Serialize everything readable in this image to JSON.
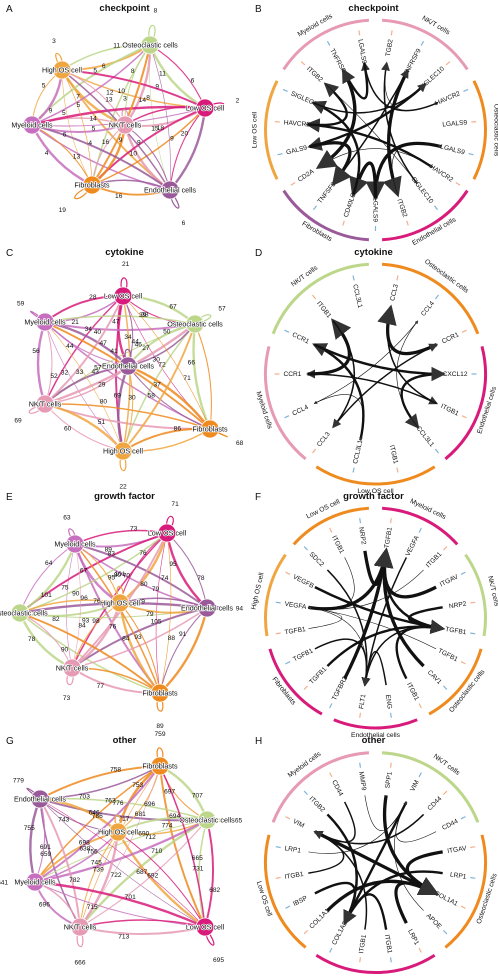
{
  "colors": {
    "High OS cell": "#f0a640",
    "Osteoclastic cells": "#bcd68a",
    "Low OS cell": "#d81b7a",
    "Endothelial cells": "#9a5a9a",
    "Fibroblasts": "#ef8a1e",
    "NK/T cells": "#e69ab4",
    "Myeloid cells": "#c76fbe",
    "receptor_tick": "#7fb3d8",
    "ligand_tick": "#f2b08a"
  },
  "network_panels": [
    {
      "letter": "A",
      "title": "checkpoint",
      "nodes": [
        {
          "id": "High OS cell",
          "label": "High OS cell",
          "self": "3"
        },
        {
          "id": "Osteoclastic cells",
          "label": "Osteoclastic cells",
          "self": "8"
        },
        {
          "id": "Myeloid cells",
          "label": "Myeloid cells",
          "self": "9"
        },
        {
          "id": "NK/T cells",
          "label": "NK/T cells",
          "self": "3"
        },
        {
          "id": "Low OS cell",
          "label": "Low OS cell",
          "self": "2"
        },
        {
          "id": "Fibroblasts",
          "label": "Fibroblasts",
          "self": "19"
        },
        {
          "id": "Endothelial cells",
          "label": "Endothelial cells",
          "self": "6"
        }
      ],
      "edge_numbers": [
        "5",
        "5",
        "7",
        "12",
        "5",
        "14",
        "6",
        "8",
        "11",
        "10",
        "8",
        "6",
        "5",
        "4",
        "13",
        "15",
        "16",
        "10",
        "18",
        "20",
        "16",
        "11",
        "9",
        "13",
        "9",
        "4",
        "9",
        "5",
        "14",
        "6",
        "9",
        "9"
      ]
    },
    {
      "letter": "C",
      "title": "cytokine",
      "nodes": [
        {
          "id": "Low OS cell",
          "label": "Low OS cell",
          "self": "21"
        },
        {
          "id": "Myeloid cells",
          "label": "Myeloid cells",
          "self": "59"
        },
        {
          "id": "Osteoclastic cells",
          "label": "Osteoclastic cells",
          "self": "57"
        },
        {
          "id": "Endothelial cells",
          "label": "Endothelial cells",
          "self": "34"
        },
        {
          "id": "NK/T cells",
          "label": "NK/T cells",
          "self": "69"
        },
        {
          "id": "Fibroblasts",
          "label": "Fibroblasts",
          "self": "68"
        },
        {
          "id": "High OS cell",
          "label": "High OS cell",
          "self": "22"
        }
      ],
      "edge_numbers": [
        "28",
        "38",
        "47",
        "34",
        "27",
        "41",
        "40",
        "44",
        "56",
        "57",
        "32",
        "50",
        "46",
        "66",
        "72",
        "43",
        "58",
        "69",
        "51",
        "60",
        "86",
        "21",
        "67",
        "44",
        "33",
        "71",
        "30",
        "39",
        "47",
        "52",
        "37",
        "80",
        "30",
        "29"
      ]
    },
    {
      "letter": "E",
      "title": "growth factor",
      "nodes": [
        {
          "id": "Myeloid cells",
          "label": "Myeloid cells",
          "self": "63"
        },
        {
          "id": "Low OS cell",
          "label": "Low OS cell",
          "self": "71"
        },
        {
          "id": "Osteoclastic cells",
          "label": "Osteoclastic cells",
          "self": "95"
        },
        {
          "id": "High OS cell",
          "label": "High OS cell",
          "self": "101"
        },
        {
          "id": "Endothelial cells",
          "label": "Endothelial cells",
          "self": "94"
        },
        {
          "id": "NK/T cells",
          "label": "NK/T cells",
          "self": "73"
        },
        {
          "id": "Fibroblasts",
          "label": "Fibroblasts",
          "self": "89"
        }
      ],
      "edge_numbers": [
        "89",
        "64",
        "67",
        "80",
        "75",
        "76",
        "83",
        "76",
        "95",
        "70",
        "79",
        "82",
        "93",
        "78",
        "90",
        "79",
        "98",
        "84",
        "105",
        "91",
        "77",
        "73",
        "101",
        "95",
        "74",
        "84",
        "93",
        "90",
        "80",
        "78",
        "76",
        "88",
        "96",
        "79"
      ]
    },
    {
      "letter": "G",
      "title": "other",
      "nodes": [
        {
          "id": "Fibroblasts",
          "label": "Fibroblasts",
          "self": "759"
        },
        {
          "id": "Endothelial cells",
          "label": "Endothelial cells",
          "self": "779"
        },
        {
          "id": "Osteoclastic cells",
          "label": "Osteoclastic cells",
          "self": "765"
        },
        {
          "id": "High OS cell",
          "label": "High OS cell",
          "self": "776"
        },
        {
          "id": "Myeloid cells",
          "label": "Myeloid cells",
          "self": "641"
        },
        {
          "id": "NK/T cells",
          "label": "NK/T cells",
          "self": "666"
        },
        {
          "id": "Low OS cell",
          "label": "Low OS cell",
          "self": "695"
        }
      ],
      "edge_numbers": [
        "758",
        "697",
        "753",
        "762",
        "717",
        "774",
        "786",
        "743",
        "755",
        "691",
        "756",
        "694",
        "690",
        "710",
        "665",
        "698",
        "745",
        "687",
        "696",
        "715",
        "713",
        "703",
        "707",
        "681",
        "638",
        "722",
        "731",
        "696",
        "646",
        "659",
        "782",
        "692",
        "712",
        "739",
        "701",
        "682"
      ]
    }
  ],
  "chord_panels": [
    {
      "letter": "B",
      "title": "checkpoint",
      "cells": [
        {
          "label": "NK/T cells",
          "color_key": "NK/T cells"
        },
        {
          "label": "Osteoclastic cells",
          "color_key": "Fibroblasts"
        },
        {
          "label": "Endothelial cells",
          "color_key": "Low OS cell"
        },
        {
          "label": "Fibroblasts",
          "color_key": "Endothelial cells"
        },
        {
          "label": "Low OS cell",
          "color_key": "High OS cell"
        },
        {
          "label": "Myeloid cells",
          "color_key": "NK/T cells"
        }
      ],
      "genes": [
        "TGB2",
        "TNFRSF9",
        "SIGLEC10",
        "HAVCR2",
        "LGALS9",
        "LGALS9",
        "HAVCR2",
        "SIGLEC10",
        "ITGB2",
        "LGALS9",
        "CD40LG",
        "TNFSF9",
        "CD2A",
        "GALS9",
        "HAVCR2",
        "SIGLEC10",
        "ITGB2",
        "TNFRSF9",
        "LGALS9"
      ]
    },
    {
      "letter": "D",
      "title": "cytokine",
      "cells": [
        {
          "label": "Osteoclastic cells",
          "color_key": "Fibroblasts"
        },
        {
          "label": "Endothelial cells",
          "color_key": "Low OS cell"
        },
        {
          "label": "Low OS cell",
          "color_key": "Fibroblasts"
        },
        {
          "label": "Myeloid cells",
          "color_key": "NK/T cells"
        },
        {
          "label": "NK/T cells",
          "color_key": "Osteoclastic cells"
        }
      ],
      "genes": [
        "CCL3",
        "CCL4",
        "CCR1",
        "CXCL12",
        "ITGB1",
        "CCL3L1",
        "ITGB1",
        "CCL3L1",
        "CCL3",
        "CCL4",
        "CCR1",
        "CCR1",
        "ITGB1",
        "CCL3L1"
      ]
    },
    {
      "letter": "F",
      "title": "growth factor",
      "cells": [
        {
          "label": "Myeloid cells",
          "color_key": "Low OS cell"
        },
        {
          "label": "NK/T cells",
          "color_key": "Osteoclastic cells"
        },
        {
          "label": "Osteoclastic cells",
          "color_key": "Fibroblasts"
        },
        {
          "label": "Endothelial cells",
          "color_key": "Low OS cell"
        },
        {
          "label": "Fibroblasts",
          "color_key": "Low OS cell"
        },
        {
          "label": "High OS cell",
          "color_key": "High OS cell"
        },
        {
          "label": "Low OS cell",
          "color_key": "Fibroblasts"
        }
      ],
      "genes": [
        "TGFB1",
        "VEGFA",
        "ITGB1",
        "ITGAV",
        "NRP2",
        "TGFB1",
        "TGFB1",
        "CAV1",
        "ITGB1",
        "ENG",
        "FLT1",
        "TGFBR2",
        "TGFB1",
        "TGFB1",
        "TGFB1",
        "VEGFA",
        "VEGFB",
        "SDC2",
        "ITGB1",
        "NRP2"
      ]
    },
    {
      "letter": "H",
      "title": "other",
      "cells": [
        {
          "label": "NK/T cells",
          "color_key": "Osteoclastic cells"
        },
        {
          "label": "Osteoclastic cells",
          "color_key": "Fibroblasts"
        },
        {
          "label": "Endothelial cells",
          "color_key": "Low OS cell"
        },
        {
          "label": "Low OS cell",
          "color_key": "Fibroblasts"
        },
        {
          "label": "Myeloid cells",
          "color_key": "NK/T cells"
        }
      ],
      "genes": [
        "SPP1",
        "VIM",
        "CD44",
        "CD44",
        "ITGAV",
        "LRP1",
        "COL1A1",
        "APOE",
        "LRP1",
        "ITGB1",
        "ITGB1",
        "COL1A2",
        "COL1A1",
        "IBSP",
        "ITGB1",
        "LRP1",
        "VIM",
        "ITGB2",
        "CD44",
        "MMP9"
      ]
    }
  ]
}
